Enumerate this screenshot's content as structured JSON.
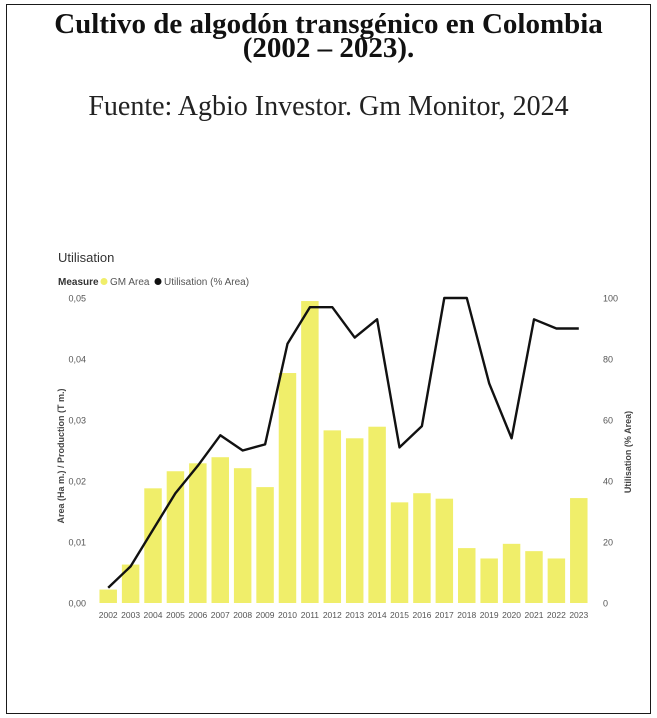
{
  "header": {
    "title_line1": "Cultivo de algodón transgénico en Colombia",
    "title_line2": "(2002 – 2023).",
    "subtitle": "Fuente: Agbio Investor. Gm Monitor, 2024"
  },
  "chart_data": {
    "type": "bar",
    "title": "Utilisation",
    "legend_title": "Measure",
    "legend_position": "top-left",
    "categories": [
      "2002",
      "2003",
      "2004",
      "2005",
      "2006",
      "2007",
      "2008",
      "2009",
      "2010",
      "2011",
      "2012",
      "2013",
      "2014",
      "2015",
      "2016",
      "2017",
      "2018",
      "2019",
      "2020",
      "2021",
      "2022",
      "2023"
    ],
    "series": [
      {
        "name": "GM Area",
        "type": "bar",
        "axis": "left",
        "color": "#f0ee6a",
        "values": [
          0.0022,
          0.0063,
          0.0188,
          0.0216,
          0.0229,
          0.0239,
          0.0221,
          0.019,
          0.0377,
          0.0495,
          0.0283,
          0.027,
          0.0289,
          0.0165,
          0.018,
          0.0171,
          0.009,
          0.0073,
          0.0097,
          0.0085,
          0.0073,
          0.0172
        ]
      },
      {
        "name": "Utilisation (% Area)",
        "type": "line",
        "axis": "right",
        "color": "#111111",
        "values": [
          5,
          12,
          24,
          36,
          45,
          55,
          50,
          52,
          85,
          97,
          97,
          87,
          93,
          51,
          58,
          100,
          100,
          72,
          54,
          93,
          90,
          90
        ]
      }
    ],
    "y_left": {
      "label": "Area (Ha m.) / Production (T m.)",
      "ylim": [
        0,
        0.05
      ],
      "ticks": [
        "0,00",
        "0,01",
        "0,02",
        "0,03",
        "0,04",
        "0,05"
      ]
    },
    "y_right": {
      "label": "Utilisation (% Area)",
      "ylim": [
        0,
        100
      ],
      "ticks": [
        "0",
        "20",
        "40",
        "60",
        "80",
        "100"
      ]
    },
    "grid": false
  }
}
